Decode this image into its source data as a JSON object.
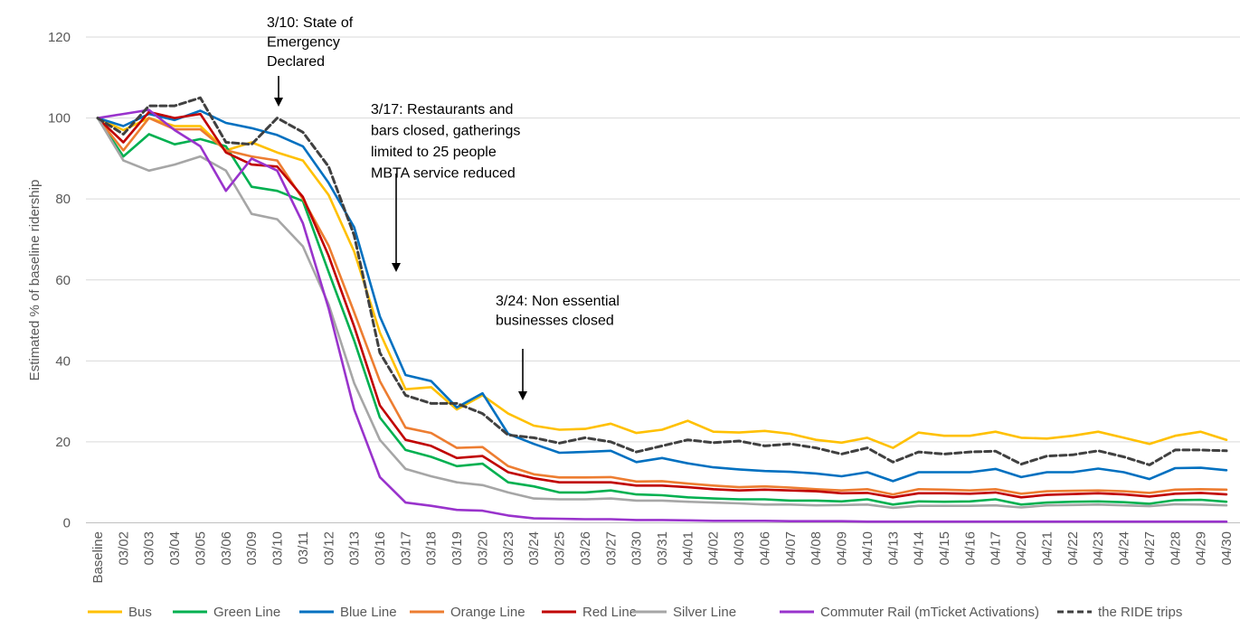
{
  "chart_data": {
    "type": "line",
    "title": "",
    "xlabel": "",
    "ylabel": "Estimated % of baseline ridership",
    "ylim": [
      0,
      120
    ],
    "yticks": [
      "0",
      "20",
      "40",
      "60",
      "80",
      "100",
      "120"
    ],
    "grid": "horizontal",
    "legend_position": "bottom",
    "categories": [
      "Baseline",
      "03/02",
      "03/03",
      "03/04",
      "03/05",
      "03/06",
      "03/09",
      "03/10",
      "03/11",
      "03/12",
      "03/13",
      "03/16",
      "03/17",
      "03/18",
      "03/19",
      "03/20",
      "03/23",
      "03/24",
      "03/25",
      "03/26",
      "03/27",
      "03/30",
      "03/31",
      "04/01",
      "04/02",
      "04/03",
      "04/06",
      "04/07",
      "04/08",
      "04/09",
      "04/10",
      "04/13",
      "04/14",
      "04/15",
      "04/16",
      "04/17",
      "04/20",
      "04/21",
      "04/22",
      "04/23",
      "04/24",
      "04/27",
      "04/28",
      "04/29",
      "04/30"
    ],
    "series": [
      {
        "name": "Bus",
        "color": "#FFC000",
        "dash": false,
        "values": [
          100,
          97,
          100,
          98,
          98,
          92,
          94,
          91.5,
          89.5,
          81,
          67,
          47,
          33,
          33.5,
          28,
          31.5,
          27,
          24,
          23,
          23.2,
          24.5,
          22.2,
          23,
          25.2,
          22.5,
          22.3,
          22.7,
          22,
          20.5,
          19.8,
          21,
          18.5,
          22.3,
          21.5,
          21.5,
          22.5,
          21,
          20.8,
          21.5,
          22.5,
          21,
          19.5,
          21.5,
          22.5,
          20.5
        ]
      },
      {
        "name": "Green Line",
        "color": "#00B050",
        "dash": false,
        "values": [
          100,
          90.5,
          96,
          93.5,
          94.8,
          93,
          83,
          82,
          79.5,
          62,
          45,
          26,
          18,
          16.3,
          14,
          14.6,
          10,
          9,
          7.5,
          7.5,
          8,
          7,
          6.8,
          6.3,
          6,
          5.8,
          5.8,
          5.5,
          5.5,
          5.3,
          5.8,
          4.5,
          5.3,
          5.2,
          5.3,
          5.8,
          4.5,
          5,
          5.2,
          5.3,
          5.1,
          4.7,
          5.6,
          5.7,
          5.2
        ]
      },
      {
        "name": "Blue Line",
        "color": "#0070C0",
        "dash": false,
        "values": [
          100,
          98,
          101,
          99.5,
          101.8,
          98.8,
          97.5,
          95.8,
          93,
          84,
          73,
          51,
          36.5,
          35,
          28.5,
          32,
          22,
          19.5,
          17.3,
          17.5,
          17.8,
          15,
          16,
          14.7,
          13.7,
          13.2,
          12.8,
          12.6,
          12.2,
          11.5,
          12.5,
          10.3,
          12.5,
          12.5,
          12.5,
          13.3,
          11.3,
          12.5,
          12.5,
          13.4,
          12.5,
          10.8,
          13.5,
          13.6,
          13
        ]
      },
      {
        "name": "Orange Line",
        "color": "#ED7D31",
        "dash": false,
        "values": [
          100,
          92,
          100,
          97.2,
          97.2,
          92,
          90.5,
          89.5,
          80,
          68.5,
          52,
          35,
          23.5,
          22.2,
          18.5,
          18.7,
          14,
          12,
          11.2,
          11.2,
          11.3,
          10.2,
          10.3,
          9.7,
          9.2,
          8.8,
          9,
          8.7,
          8.3,
          8,
          8.3,
          7,
          8.3,
          8.2,
          8,
          8.3,
          7.2,
          7.8,
          7.9,
          8,
          7.8,
          7.4,
          8.2,
          8.3,
          8.2
        ]
      },
      {
        "name": "Red Line",
        "color": "#C00000",
        "dash": false,
        "values": [
          100,
          94,
          101.5,
          100,
          101,
          91.5,
          88.5,
          88,
          80.5,
          66,
          48.5,
          29,
          20.5,
          19,
          16,
          16.5,
          12.5,
          11,
          10,
          10,
          10,
          9.2,
          9.2,
          8.8,
          8.3,
          8,
          8.2,
          8,
          7.8,
          7.3,
          7.4,
          6.3,
          7.3,
          7.3,
          7.2,
          7.5,
          6.3,
          6.9,
          7.1,
          7.3,
          7,
          6.5,
          7.2,
          7.4,
          7
        ]
      },
      {
        "name": "Silver Line",
        "color": "#A6A6A6",
        "dash": false,
        "values": [
          100,
          89.5,
          87,
          88.5,
          90.5,
          87,
          76.3,
          75,
          68.3,
          54,
          34.5,
          20.5,
          13.3,
          11.5,
          10,
          9.3,
          7.5,
          6,
          5.8,
          5.8,
          6,
          5.5,
          5.5,
          5.2,
          5,
          4.8,
          4.5,
          4.5,
          4.3,
          4.4,
          4.5,
          3.7,
          4.2,
          4.2,
          4.2,
          4.3,
          3.8,
          4.3,
          4.4,
          4.5,
          4.3,
          4.1,
          4.6,
          4.5,
          4.3
        ]
      },
      {
        "name": "Commuter Rail (mTicket Activations)",
        "color": "#9933CC",
        "dash": false,
        "values": [
          100,
          101,
          102,
          97,
          93,
          82,
          90,
          87,
          74,
          53,
          28,
          11.3,
          5,
          4.2,
          3.2,
          3,
          1.8,
          1.1,
          1,
          0.9,
          0.9,
          0.7,
          0.7,
          0.6,
          0.5,
          0.5,
          0.5,
          0.4,
          0.4,
          0.4,
          0.3,
          0.3,
          0.3,
          0.3,
          0.3,
          0.3,
          0.3,
          0.3,
          0.3,
          0.3,
          0.3,
          0.3,
          0.3,
          0.3,
          0.3
        ]
      },
      {
        "name": "the RIDE trips",
        "color": "#404040",
        "dash": true,
        "values": [
          100,
          96,
          103,
          103,
          105,
          94,
          93.5,
          100,
          96.5,
          88,
          71,
          42,
          31.5,
          29.5,
          29.5,
          27,
          21.7,
          21,
          19.7,
          21,
          20,
          17.5,
          19,
          20.5,
          19.8,
          20.2,
          19,
          19.5,
          18.5,
          17,
          18.5,
          15,
          17.5,
          17,
          17.5,
          17.7,
          14.5,
          16.5,
          16.8,
          17.8,
          16.3,
          14.3,
          18,
          18,
          17.8
        ]
      }
    ],
    "annotations": [
      {
        "lines": [
          "3/10: State of",
          "Emergency",
          "Declared"
        ],
        "at": "03/10"
      },
      {
        "lines": [
          "3/17: Restaurants and",
          "bars closed, gatherings",
          "limited to 25 people",
          "MBTA service reduced"
        ],
        "at": "03/17"
      },
      {
        "lines": [
          "3/24: Non essential",
          "businesses closed"
        ],
        "at": "03/24"
      }
    ]
  }
}
